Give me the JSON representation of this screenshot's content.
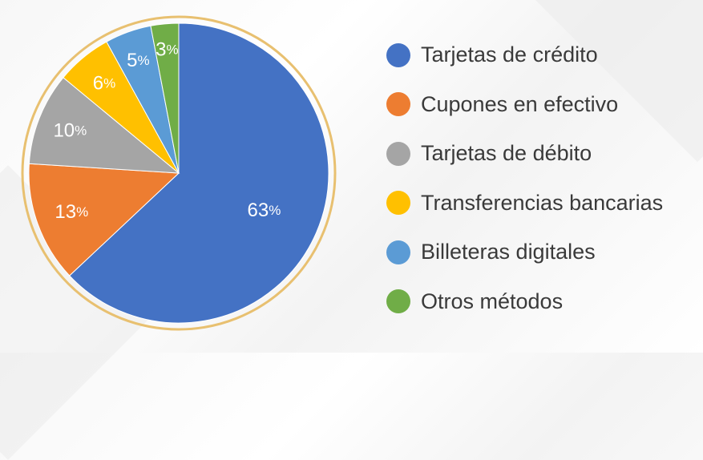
{
  "chart_data": {
    "type": "pie",
    "title": "",
    "slices": [
      {
        "label": "Tarjetas de crédito",
        "value": 63,
        "value_text": "63",
        "unit": "%",
        "color": "#4472C4"
      },
      {
        "label": "Cupones en efectivo",
        "value": 13,
        "value_text": "13",
        "unit": "%",
        "color": "#ED7D31"
      },
      {
        "label": "Tarjetas de débito",
        "value": 10,
        "value_text": "10",
        "unit": "%",
        "color": "#A5A5A5"
      },
      {
        "label": "Transferencias bancarias",
        "value": 6,
        "value_text": "6",
        "unit": "%",
        "color": "#FFC000"
      },
      {
        "label": "Billeteras digitales",
        "value": 5,
        "value_text": "5",
        "unit": "%",
        "color": "#5B9BD5"
      },
      {
        "label": "Otros métodos",
        "value": 3,
        "value_text": "3",
        "unit": "%",
        "color": "#70AD47"
      }
    ],
    "ring_color": "#E8C070",
    "label_color": "#ffffff",
    "legend_position": "right"
  }
}
